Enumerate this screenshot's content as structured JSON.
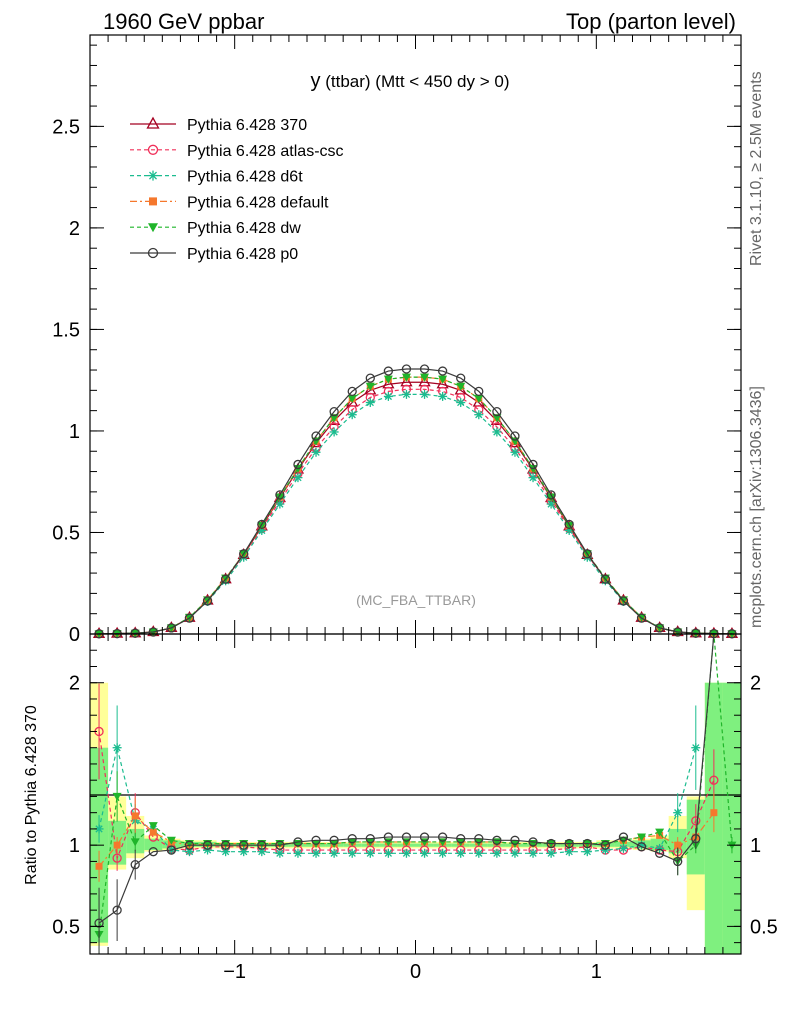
{
  "header": {
    "left": "1960 GeV ppbar",
    "right": "Top (parton level)"
  },
  "side_labels": {
    "rivet": "Rivet 3.1.10, ≥ 2.5M events",
    "mcplots": "mcplots.cern.ch [arXiv:1306.3436]"
  },
  "chart_data": {
    "type": "line",
    "title_main": "y",
    "title_rest": " (ttbar) (Mtt < 450 dy > 0)",
    "watermark": "(MC_FBA_TTBAR)",
    "xlim": [
      -1.8,
      1.8
    ],
    "main_ylim": [
      0,
      2.95
    ],
    "ratio_ylim": [
      0.33,
      2.3
    ],
    "ratio_ylabel": "Ratio to Pythia 6.428 370",
    "x_ticks": [
      -1,
      0,
      1
    ],
    "x_tick_labels": [
      "−1",
      "0",
      "1"
    ],
    "main_y_ticks": [
      0,
      0.5,
      1,
      1.5,
      2,
      2.5
    ],
    "main_y_tick_labels": [
      "0",
      "0.5",
      "1",
      "1.5",
      "2",
      "2.5"
    ],
    "ratio_y_ticks": [
      0.5,
      1,
      2
    ],
    "ratio_y_tick_labels": [
      "0.5",
      "1",
      "2"
    ],
    "x": [
      -1.75,
      -1.65,
      -1.55,
      -1.45,
      -1.35,
      -1.25,
      -1.15,
      -1.05,
      -0.95,
      -0.85,
      -0.75,
      -0.65,
      -0.55,
      -0.45,
      -0.35,
      -0.25,
      -0.15,
      -0.05,
      0.05,
      0.15,
      0.25,
      0.35,
      0.45,
      0.55,
      0.65,
      0.75,
      0.85,
      0.95,
      1.05,
      1.15,
      1.25,
      1.35,
      1.45,
      1.55,
      1.65,
      1.75
    ],
    "series": [
      {
        "name": "Pythia 6.428 370",
        "color": "#a50021",
        "marker": "triangle-open",
        "dash": "",
        "values": [
          0.001,
          0.002,
          0.004,
          0.01,
          0.03,
          0.08,
          0.165,
          0.27,
          0.39,
          0.53,
          0.67,
          0.81,
          0.94,
          1.05,
          1.14,
          1.2,
          1.23,
          1.24,
          1.24,
          1.23,
          1.2,
          1.14,
          1.05,
          0.94,
          0.81,
          0.67,
          0.53,
          0.39,
          0.27,
          0.165,
          0.08,
          0.03,
          0.01,
          0.004,
          0.002,
          0.001
        ]
      },
      {
        "name": "Pythia 6.428 atlas-csc",
        "color": "#f0305a",
        "marker": "circle-open",
        "dash": "4,3",
        "values": [
          0.001,
          0.002,
          0.004,
          0.01,
          0.03,
          0.08,
          0.165,
          0.27,
          0.39,
          0.52,
          0.655,
          0.79,
          0.915,
          1.02,
          1.105,
          1.165,
          1.195,
          1.205,
          1.205,
          1.195,
          1.165,
          1.105,
          1.02,
          0.915,
          0.79,
          0.655,
          0.52,
          0.39,
          0.27,
          0.165,
          0.08,
          0.03,
          0.01,
          0.004,
          0.002,
          0.001
        ]
      },
      {
        "name": "Pythia 6.428 d6t",
        "color": "#1bbc8f",
        "marker": "star",
        "dash": "4,3",
        "values": [
          0.001,
          0.002,
          0.004,
          0.01,
          0.03,
          0.08,
          0.16,
          0.262,
          0.378,
          0.51,
          0.64,
          0.77,
          0.895,
          0.995,
          1.08,
          1.14,
          1.17,
          1.18,
          1.18,
          1.17,
          1.14,
          1.08,
          0.995,
          0.895,
          0.77,
          0.64,
          0.51,
          0.378,
          0.262,
          0.16,
          0.08,
          0.03,
          0.01,
          0.004,
          0.002,
          0.001
        ]
      },
      {
        "name": "Pythia 6.428 default",
        "color": "#f5782d",
        "marker": "square",
        "dash": "7,3,2,3",
        "values": [
          0.001,
          0.002,
          0.004,
          0.01,
          0.03,
          0.082,
          0.168,
          0.275,
          0.395,
          0.535,
          0.675,
          0.815,
          0.95,
          1.065,
          1.16,
          1.22,
          1.255,
          1.265,
          1.265,
          1.255,
          1.22,
          1.16,
          1.065,
          0.95,
          0.815,
          0.675,
          0.535,
          0.395,
          0.275,
          0.168,
          0.082,
          0.03,
          0.01,
          0.004,
          0.002,
          0.001
        ]
      },
      {
        "name": "Pythia 6.428 dw",
        "color": "#1fb52a",
        "marker": "triangle-down",
        "dash": "4,3",
        "values": [
          0.001,
          0.002,
          0.004,
          0.01,
          0.03,
          0.082,
          0.168,
          0.275,
          0.395,
          0.535,
          0.675,
          0.815,
          0.95,
          1.065,
          1.16,
          1.22,
          1.255,
          1.265,
          1.265,
          1.255,
          1.22,
          1.16,
          1.065,
          0.95,
          0.815,
          0.675,
          0.535,
          0.395,
          0.275,
          0.168,
          0.082,
          0.03,
          0.01,
          0.004,
          0.002,
          0.001
        ]
      },
      {
        "name": "Pythia 6.428 p0",
        "color": "#3a3a3a",
        "marker": "circle-open",
        "dash": "",
        "values": [
          0.001,
          0.002,
          0.004,
          0.01,
          0.03,
          0.078,
          0.163,
          0.27,
          0.395,
          0.54,
          0.685,
          0.835,
          0.975,
          1.095,
          1.195,
          1.26,
          1.295,
          1.305,
          1.305,
          1.295,
          1.26,
          1.195,
          1.095,
          0.975,
          0.835,
          0.685,
          0.54,
          0.395,
          0.27,
          0.163,
          0.078,
          0.03,
          0.01,
          0.004,
          0.002,
          0.001
        ]
      }
    ],
    "ratio_series": [
      {
        "name": "Pythia 6.428 atlas-csc",
        "values": [
          1.7,
          0.92,
          1.2,
          1.05,
          0.98,
          0.97,
          0.99,
          0.99,
          0.99,
          0.98,
          0.97,
          0.97,
          0.97,
          0.97,
          0.97,
          0.97,
          0.97,
          0.97,
          0.97,
          0.97,
          0.97,
          0.97,
          0.97,
          0.97,
          0.97,
          0.97,
          0.98,
          0.99,
          0.97,
          0.97,
          0.99,
          0.97,
          0.96,
          1.15,
          1.4,
          null
        ]
      },
      {
        "name": "Pythia 6.428 d6t",
        "values": [
          1.1,
          1.6,
          1.15,
          1.1,
          0.97,
          0.96,
          0.97,
          0.96,
          0.96,
          0.96,
          0.95,
          0.95,
          0.95,
          0.95,
          0.95,
          0.95,
          0.95,
          0.95,
          0.95,
          0.95,
          0.95,
          0.95,
          0.95,
          0.95,
          0.95,
          0.95,
          0.96,
          0.96,
          0.97,
          0.98,
          1.0,
          0.98,
          1.2,
          1.6,
          null,
          null
        ]
      },
      {
        "name": "Pythia 6.428 default",
        "values": [
          0.87,
          1.0,
          1.18,
          1.08,
          1.02,
          1.0,
          1.01,
          1.01,
          1.01,
          1.01,
          1.01,
          1.01,
          1.01,
          1.01,
          1.02,
          1.02,
          1.02,
          1.02,
          1.02,
          1.02,
          1.02,
          1.02,
          1.02,
          1.01,
          1.01,
          1.01,
          1.01,
          1.01,
          1.01,
          1.03,
          1.05,
          1.06,
          1.0,
          1.05,
          1.2,
          null
        ]
      },
      {
        "name": "Pythia 6.428 dw",
        "values": [
          0.45,
          1.3,
          1.02,
          1.12,
          1.03,
          1.01,
          1.01,
          1.01,
          1.01,
          1.01,
          1.01,
          1.01,
          1.01,
          1.01,
          1.02,
          1.02,
          1.02,
          1.02,
          1.02,
          1.02,
          1.02,
          1.02,
          1.02,
          1.01,
          1.01,
          1.01,
          1.01,
          1.01,
          1.01,
          1.03,
          1.05,
          1.08,
          0.9,
          1.0,
          2.5,
          1.0
        ]
      },
      {
        "name": "Pythia 6.428 p0",
        "values": [
          0.52,
          0.6,
          0.88,
          0.96,
          0.97,
          1.0,
          1.0,
          1.0,
          1.0,
          1.0,
          1.0,
          1.02,
          1.03,
          1.03,
          1.04,
          1.04,
          1.05,
          1.05,
          1.05,
          1.05,
          1.04,
          1.04,
          1.03,
          1.03,
          1.02,
          1.01,
          1.01,
          1.01,
          1.0,
          1.05,
          0.99,
          0.95,
          0.9,
          1.04,
          2.8,
          null
        ]
      }
    ],
    "uncertainty_bands": {
      "yellow": [
        [
          0.38,
          2.0
        ],
        [
          0.85,
          1.3
        ],
        [
          0.92,
          1.18
        ],
        [
          0.96,
          1.06
        ],
        [
          0.97,
          1.04
        ],
        [
          0.98,
          1.03
        ],
        [
          0.98,
          1.03
        ],
        [
          0.98,
          1.02
        ],
        [
          0.98,
          1.02
        ],
        [
          0.98,
          1.02
        ],
        [
          0.98,
          1.02
        ],
        [
          0.98,
          1.02
        ],
        [
          0.98,
          1.02
        ],
        [
          0.98,
          1.02
        ],
        [
          0.98,
          1.02
        ],
        [
          0.98,
          1.02
        ],
        [
          0.98,
          1.02
        ],
        [
          0.98,
          1.02
        ],
        [
          0.98,
          1.02
        ],
        [
          0.98,
          1.02
        ],
        [
          0.98,
          1.02
        ],
        [
          0.98,
          1.02
        ],
        [
          0.98,
          1.02
        ],
        [
          0.98,
          1.02
        ],
        [
          0.98,
          1.02
        ],
        [
          0.98,
          1.02
        ],
        [
          0.98,
          1.02
        ],
        [
          0.98,
          1.02
        ],
        [
          0.98,
          1.03
        ],
        [
          0.98,
          1.03
        ],
        [
          0.97,
          1.04
        ],
        [
          0.96,
          1.06
        ],
        [
          0.92,
          1.18
        ],
        [
          0.6,
          1.3
        ],
        [
          0.3,
          2.0
        ],
        [
          0.3,
          2.0
        ]
      ],
      "green": [
        [
          0.4,
          1.6
        ],
        [
          0.88,
          1.15
        ],
        [
          0.95,
          1.1
        ],
        [
          0.97,
          1.04
        ],
        [
          0.98,
          1.03
        ],
        [
          0.99,
          1.02
        ],
        [
          0.99,
          1.02
        ],
        [
          0.99,
          1.01
        ],
        [
          0.99,
          1.01
        ],
        [
          0.99,
          1.01
        ],
        [
          0.99,
          1.01
        ],
        [
          0.99,
          1.01
        ],
        [
          0.99,
          1.01
        ],
        [
          0.99,
          1.01
        ],
        [
          0.99,
          1.01
        ],
        [
          0.99,
          1.01
        ],
        [
          0.99,
          1.01
        ],
        [
          0.99,
          1.01
        ],
        [
          0.99,
          1.01
        ],
        [
          0.99,
          1.01
        ],
        [
          0.99,
          1.01
        ],
        [
          0.99,
          1.01
        ],
        [
          0.99,
          1.01
        ],
        [
          0.99,
          1.01
        ],
        [
          0.99,
          1.01
        ],
        [
          0.99,
          1.01
        ],
        [
          0.99,
          1.01
        ],
        [
          0.99,
          1.01
        ],
        [
          0.99,
          1.02
        ],
        [
          0.99,
          1.02
        ],
        [
          0.98,
          1.03
        ],
        [
          0.97,
          1.04
        ],
        [
          0.95,
          1.1
        ],
        [
          0.82,
          1.28
        ],
        [
          0.3,
          2.0
        ],
        [
          0.3,
          2.0
        ]
      ]
    }
  }
}
